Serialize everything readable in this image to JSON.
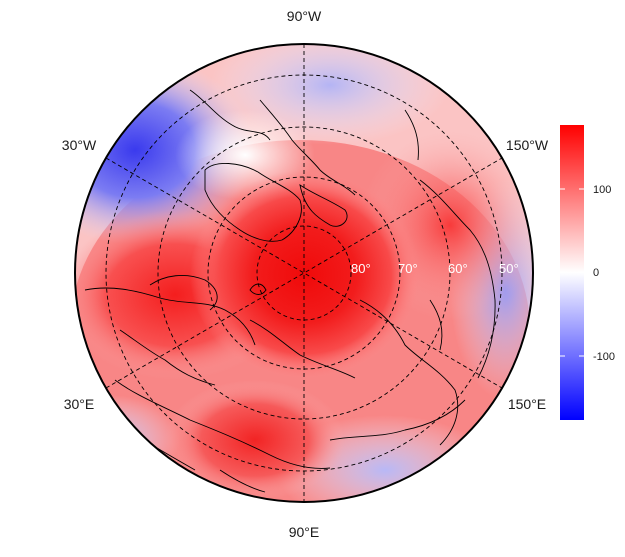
{
  "map": {
    "projection": "north polar stereographic",
    "longitude_labels": [
      {
        "text": "90°W",
        "position": "top"
      },
      {
        "text": "30°W",
        "position": "upper-left"
      },
      {
        "text": "150°W",
        "position": "upper-right"
      },
      {
        "text": "30°E",
        "position": "lower-left"
      },
      {
        "text": "150°E",
        "position": "lower-right"
      },
      {
        "text": "90°E",
        "position": "bottom"
      }
    ],
    "latitude_labels": [
      "80°",
      "70°",
      "60°",
      "50°"
    ],
    "colorbar": {
      "ticks": [
        "100",
        "0",
        "-100"
      ],
      "range": [
        -180,
        180
      ],
      "colors": {
        "high": "#ff0000",
        "mid": "#ffffff",
        "low": "#0000ff"
      }
    },
    "colors": {
      "border": "#000000",
      "graticule": "#000000"
    }
  }
}
